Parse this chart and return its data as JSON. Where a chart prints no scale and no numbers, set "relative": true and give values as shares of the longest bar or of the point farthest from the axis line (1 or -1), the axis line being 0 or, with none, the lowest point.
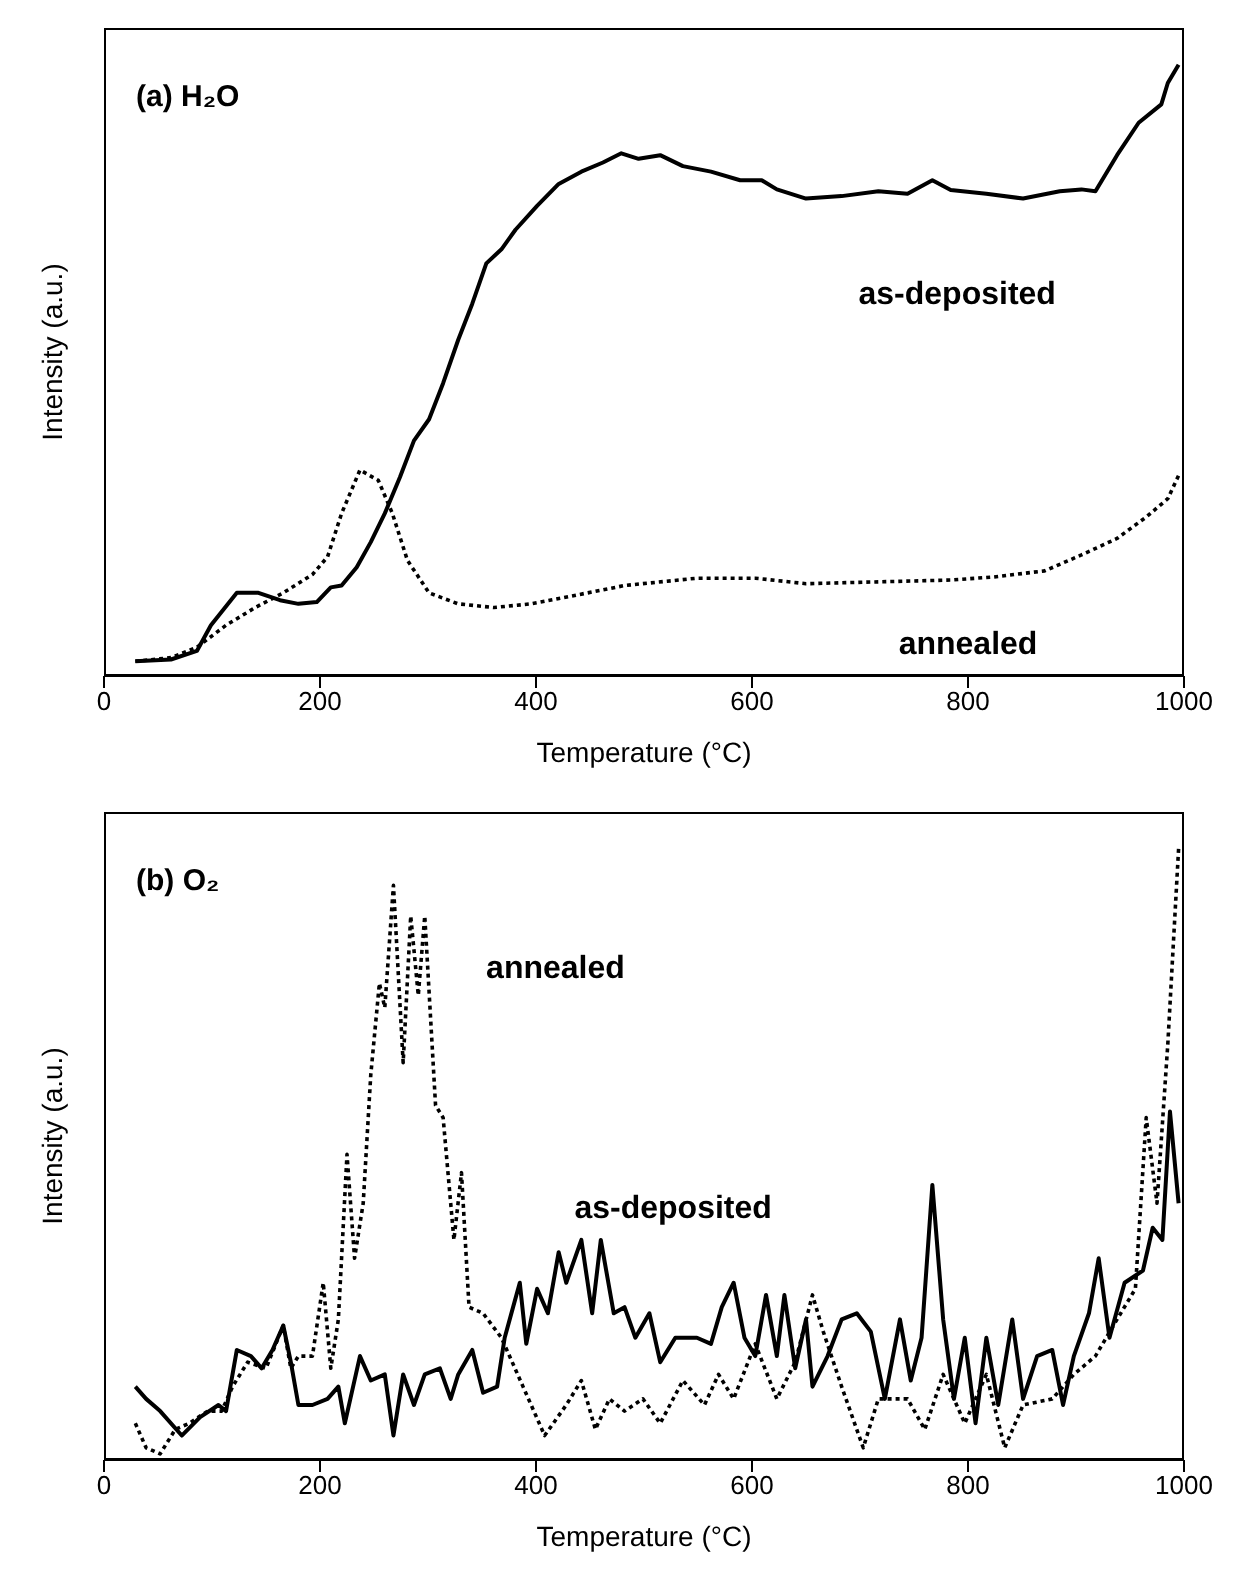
{
  "chart_data": [
    {
      "type": "line",
      "title": "(a) H₂O",
      "xlabel": "Temperature (°C)",
      "ylabel": "Intensity (a.u.)",
      "relative": true,
      "xlim": [
        0,
        1000
      ],
      "xticks": [
        0,
        200,
        400,
        600,
        800,
        1000
      ],
      "series": [
        {
          "name": "as-deposited",
          "color": "#000000",
          "line_style": "solid",
          "x": [
            29,
            62,
            86,
            99,
            123,
            143,
            163,
            180,
            197,
            210,
            220,
            234,
            247,
            260,
            274,
            287,
            301,
            314,
            328,
            341,
            354,
            368,
            381,
            401,
            421,
            442,
            462,
            479,
            495,
            515,
            536,
            562,
            589,
            609,
            623,
            650,
            683,
            717,
            744,
            767,
            784,
            817,
            851,
            885,
            905,
            918,
            938,
            958,
            979,
            985,
            995
          ],
          "values": [
            0.024,
            0.027,
            0.041,
            0.083,
            0.136,
            0.136,
            0.124,
            0.118,
            0.121,
            0.145,
            0.148,
            0.178,
            0.219,
            0.266,
            0.325,
            0.385,
            0.42,
            0.479,
            0.55,
            0.609,
            0.675,
            0.698,
            0.73,
            0.769,
            0.805,
            0.825,
            0.84,
            0.855,
            0.846,
            0.852,
            0.834,
            0.825,
            0.811,
            0.811,
            0.796,
            0.781,
            0.785,
            0.793,
            0.789,
            0.811,
            0.795,
            0.789,
            0.781,
            0.793,
            0.796,
            0.793,
            0.852,
            0.905,
            0.935,
            0.97,
            1.0
          ]
        },
        {
          "name": "annealed",
          "color": "#000000",
          "line_style": "dotted",
          "x": [
            29,
            62,
            86,
            113,
            140,
            166,
            193,
            207,
            220,
            237,
            254,
            267,
            281,
            301,
            328,
            361,
            395,
            448,
            482,
            549,
            603,
            650,
            717,
            784,
            824,
            871,
            905,
            938,
            965,
            985,
            995
          ],
          "values": [
            0.024,
            0.03,
            0.047,
            0.083,
            0.112,
            0.136,
            0.166,
            0.195,
            0.266,
            0.337,
            0.32,
            0.266,
            0.189,
            0.136,
            0.118,
            0.112,
            0.118,
            0.136,
            0.148,
            0.16,
            0.16,
            0.151,
            0.154,
            0.157,
            0.162,
            0.172,
            0.198,
            0.225,
            0.26,
            0.29,
            0.328
          ]
        }
      ]
    },
    {
      "type": "line",
      "title": "(b) O₂",
      "xlabel": "Temperature (°C)",
      "ylabel": "Intensity (a.u.)",
      "relative": true,
      "xlim": [
        0,
        1000
      ],
      "xticks": [
        0,
        200,
        400,
        600,
        800,
        1000
      ],
      "series": [
        {
          "name": "annealed",
          "color": "#000000",
          "line_style": "dotted",
          "x": [
            29,
            39,
            52,
            66,
            79,
            96,
            109,
            119,
            133,
            150,
            166,
            173,
            180,
            193,
            203,
            210,
            217,
            225,
            232,
            240,
            247,
            255,
            260,
            268,
            277,
            284,
            291,
            297,
            307,
            314,
            324,
            331,
            338,
            351,
            368,
            388,
            408,
            428,
            442,
            455,
            468,
            482,
            499,
            515,
            536,
            556,
            569,
            583,
            603,
            623,
            640,
            656,
            666,
            683,
            703,
            717,
            744,
            760,
            777,
            797,
            817,
            834,
            851,
            878,
            898,
            918,
            938,
            955,
            965,
            975,
            985,
            995
          ],
          "values": [
            0.06,
            0.02,
            0.01,
            0.05,
            0.06,
            0.08,
            0.08,
            0.12,
            0.16,
            0.15,
            0.22,
            0.15,
            0.17,
            0.17,
            0.29,
            0.15,
            0.23,
            0.5,
            0.33,
            0.42,
            0.63,
            0.78,
            0.74,
            0.94,
            0.65,
            0.89,
            0.76,
            0.89,
            0.58,
            0.56,
            0.36,
            0.47,
            0.25,
            0.24,
            0.2,
            0.12,
            0.04,
            0.09,
            0.13,
            0.05,
            0.1,
            0.08,
            0.1,
            0.06,
            0.13,
            0.09,
            0.14,
            0.1,
            0.19,
            0.1,
            0.16,
            0.27,
            0.21,
            0.12,
            0.02,
            0.1,
            0.1,
            0.05,
            0.14,
            0.06,
            0.14,
            0.02,
            0.09,
            0.1,
            0.14,
            0.17,
            0.23,
            0.28,
            0.56,
            0.42,
            0.68,
            1.0
          ]
        },
        {
          "name": "as-deposited",
          "color": "#000000",
          "line_style": "solid",
          "x": [
            29,
            39,
            52,
            72,
            89,
            106,
            113,
            123,
            136,
            146,
            156,
            166,
            173,
            180,
            193,
            207,
            217,
            223,
            237,
            247,
            260,
            268,
            277,
            287,
            297,
            311,
            321,
            328,
            341,
            351,
            364,
            371,
            385,
            391,
            401,
            411,
            421,
            428,
            442,
            452,
            460,
            472,
            482,
            492,
            505,
            515,
            529,
            549,
            562,
            572,
            583,
            593,
            603,
            613,
            623,
            630,
            640,
            650,
            656,
            670,
            683,
            697,
            710,
            723,
            737,
            747,
            757,
            767,
            777,
            787,
            797,
            807,
            817,
            828,
            841,
            851,
            864,
            878,
            888,
            898,
            912,
            921,
            931,
            945,
            962,
            971,
            980,
            987,
            995
          ],
          "values": [
            0.12,
            0.1,
            0.08,
            0.04,
            0.07,
            0.09,
            0.08,
            0.18,
            0.17,
            0.15,
            0.18,
            0.22,
            0.16,
            0.09,
            0.09,
            0.1,
            0.12,
            0.06,
            0.17,
            0.13,
            0.14,
            0.04,
            0.14,
            0.09,
            0.14,
            0.15,
            0.1,
            0.14,
            0.18,
            0.11,
            0.12,
            0.2,
            0.29,
            0.19,
            0.28,
            0.24,
            0.34,
            0.29,
            0.36,
            0.24,
            0.36,
            0.24,
            0.25,
            0.2,
            0.24,
            0.16,
            0.2,
            0.2,
            0.19,
            0.25,
            0.29,
            0.2,
            0.17,
            0.27,
            0.17,
            0.27,
            0.15,
            0.23,
            0.12,
            0.17,
            0.23,
            0.24,
            0.21,
            0.1,
            0.23,
            0.13,
            0.2,
            0.45,
            0.23,
            0.1,
            0.2,
            0.06,
            0.2,
            0.09,
            0.23,
            0.1,
            0.17,
            0.18,
            0.09,
            0.17,
            0.24,
            0.33,
            0.2,
            0.29,
            0.31,
            0.38,
            0.36,
            0.57,
            0.42
          ]
        }
      ]
    }
  ]
}
